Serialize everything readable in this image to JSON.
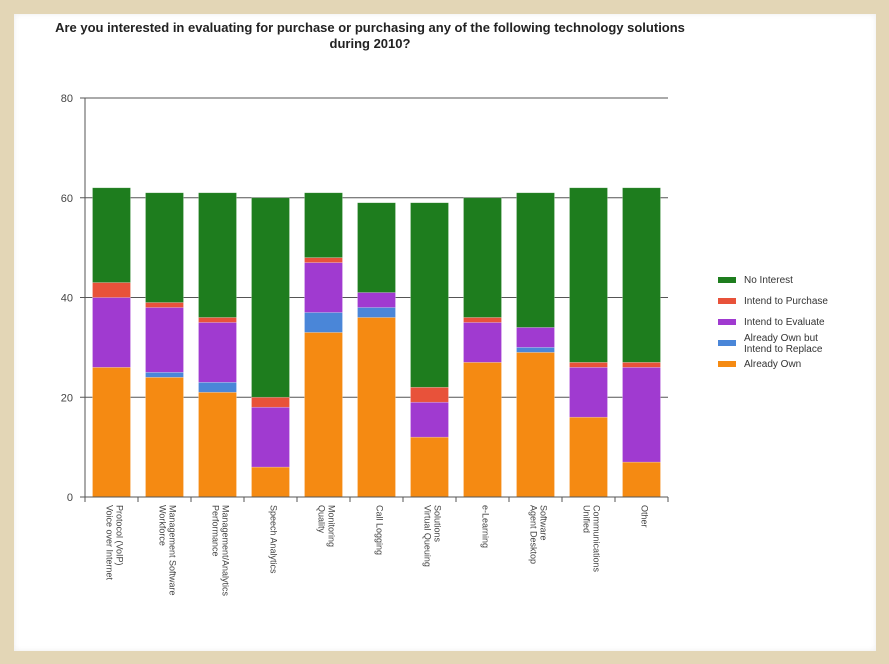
{
  "chart_data": {
    "type": "bar",
    "stacked": true,
    "title": "Are you interested in evaluating for purchase or purchasing any of the following technology solutions during 2010?",
    "ylim": [
      0,
      80
    ],
    "yticks": [
      0,
      20,
      40,
      60,
      80
    ],
    "grid": true,
    "legend_position": "right",
    "categories": [
      "Voice over Internet Protocol (VoIP)",
      "Workforce Management Software",
      "Performance Management/Analytics",
      "Speech Analytics",
      "Quality Monitoring",
      "Call Logging",
      "Virtual Queuing Solutions",
      "e-Learning",
      "Agent Desktop Software",
      "Unified Communications",
      "Other"
    ],
    "series": [
      {
        "name": "Already Own",
        "color": "#f58a12",
        "values": [
          26,
          24,
          21,
          6,
          33,
          36,
          12,
          27,
          29,
          16,
          7
        ]
      },
      {
        "name": "Already Own but Intend to Replace",
        "color": "#4a86d8",
        "values": [
          0,
          1,
          2,
          0,
          4,
          2,
          0,
          0,
          1,
          0,
          0
        ]
      },
      {
        "name": "Intend to Evaluate",
        "color": "#a03ad0",
        "values": [
          14,
          13,
          12,
          12,
          10,
          3,
          7,
          8,
          4,
          10,
          19
        ]
      },
      {
        "name": "Intend to Purchase",
        "color": "#e8523a",
        "values": [
          3,
          1,
          1,
          2,
          1,
          0,
          3,
          1,
          0,
          1,
          1
        ]
      },
      {
        "name": "No Interest",
        "color": "#1e7d1e",
        "values": [
          19,
          22,
          25,
          40,
          13,
          18,
          37,
          24,
          27,
          35,
          35
        ]
      }
    ],
    "legend_order": [
      "No Interest",
      "Intend to Purchase",
      "Intend to Evaluate",
      "Already Own but Intend to Replace",
      "Already Own"
    ]
  }
}
